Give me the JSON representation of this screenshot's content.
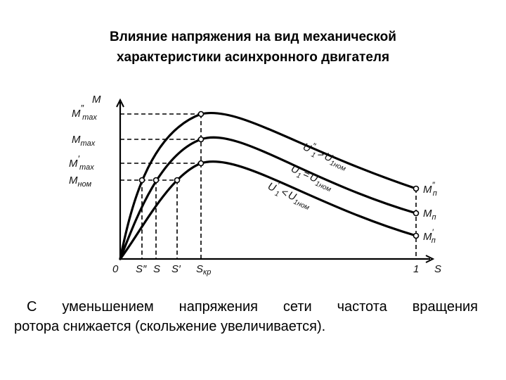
{
  "slide": {
    "title_line1": "Влияние напряжения на вид механической",
    "title_line2": "характеристики асинхронного двигателя",
    "caption_line1": "С уменьшением напряжения сети частота вращения",
    "caption_line2": "ротора снижается (скольжение увеличивается)."
  },
  "diagram": {
    "axis": {
      "y_label": "M",
      "origin_label": "0",
      "x_label": "S",
      "one_label": "1"
    },
    "y_ticks": {
      "m_max_2": {
        "main": "M",
        "sup": "″",
        "sub": "max"
      },
      "m_max": {
        "main": "M",
        "sub": "max"
      },
      "m_max_1": {
        "main": "M",
        "sup": "′",
        "sub": "max"
      },
      "m_nom": {
        "main": "M",
        "sub": "ном"
      }
    },
    "x_ticks": {
      "s2": "S″",
      "s": "S",
      "s1": "S′",
      "skr_main": "S",
      "skr_sub": "кр"
    },
    "curves": {
      "upper": {
        "label_main": "U",
        "label_sub": "1",
        "label_sup": "″",
        "label_rel": ">",
        "label_rhs": "U",
        "label_rhs_sub": "1ном"
      },
      "middle": {
        "label_main": "U",
        "label_sub": "1",
        "label_rel": "=",
        "label_rhs": "U",
        "label_rhs_sub": "1ном"
      },
      "lower": {
        "label_main": "U",
        "label_sub": "1",
        "label_sup": "′",
        "label_rel": "<",
        "label_rhs": "U",
        "label_rhs_sub": "1ном"
      }
    },
    "right_labels": {
      "upper": {
        "main": "M",
        "sub": "п",
        "sup": "″"
      },
      "middle": {
        "main": "M",
        "sub": "п"
      },
      "lower": {
        "main": "M",
        "sub": "п",
        "sup": "′"
      }
    }
  }
}
